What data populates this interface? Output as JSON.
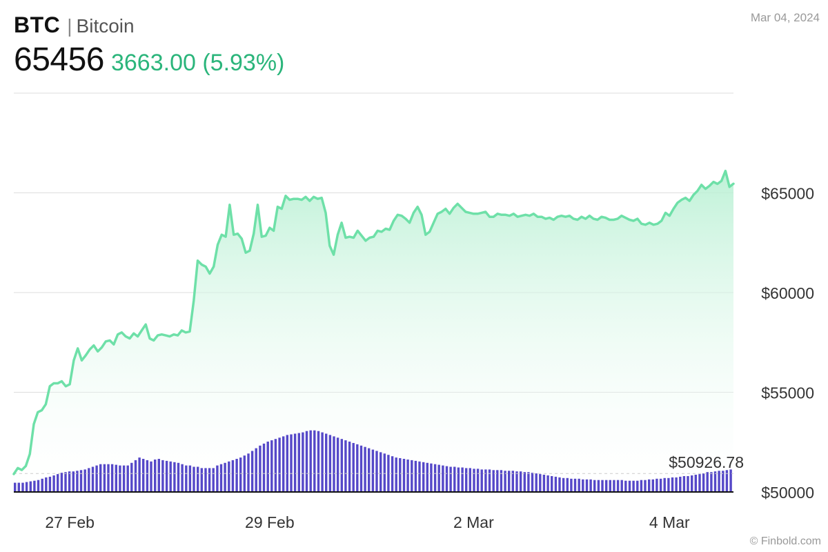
{
  "header": {
    "ticker": "BTC",
    "separator": "|",
    "name": "Bitcoin",
    "price": "65456",
    "change": "3663.00 (5.93%)",
    "date": "Mar 04, 2024"
  },
  "footer": {
    "credit": "© Finbold.com"
  },
  "colors": {
    "line": "#6ee0a8",
    "area_top": "#b8f0d3",
    "volume_bar": "#5548c8",
    "change_text": "#2bb57b",
    "grid": "#dddddd"
  },
  "chart_data": {
    "type": "line",
    "y_axis": {
      "ticks": [
        50000,
        55000,
        60000,
        65000
      ],
      "tick_labels": [
        "$50000",
        "$55000",
        "$60000",
        "$65000"
      ],
      "position": "right",
      "ylim": [
        50000,
        70000
      ]
    },
    "x_axis": {
      "tick_labels": [
        "27 Feb",
        "29 Feb",
        "2 Mar",
        "4 Mar"
      ],
      "tick_index": [
        14,
        64,
        115,
        164
      ]
    },
    "baseline_label": "$50926.78",
    "baseline_value": 50926.78,
    "price_series": {
      "name": "",
      "values": [
        50900,
        51200,
        51100,
        51300,
        51900,
        53400,
        54000,
        54100,
        54400,
        55300,
        55450,
        55450,
        55550,
        55300,
        55400,
        56600,
        57200,
        56600,
        56850,
        57150,
        57350,
        57050,
        57250,
        57550,
        57600,
        57400,
        57900,
        58000,
        57800,
        57700,
        57950,
        57800,
        58100,
        58400,
        57700,
        57600,
        57850,
        57900,
        57850,
        57800,
        57900,
        57850,
        58100,
        58000,
        58050,
        59600,
        61600,
        61400,
        61300,
        60950,
        61300,
        62400,
        62900,
        62800,
        64400,
        62900,
        62950,
        62700,
        62000,
        62100,
        62950,
        64400,
        62800,
        62850,
        63250,
        63100,
        64300,
        64200,
        64850,
        64650,
        64700,
        64700,
        64650,
        64800,
        64600,
        64800,
        64700,
        64750,
        64000,
        62350,
        61900,
        62900,
        63500,
        62750,
        62800,
        62750,
        63100,
        62850,
        62600,
        62750,
        62800,
        63100,
        63050,
        63200,
        63150,
        63600,
        63900,
        63850,
        63700,
        63500,
        64000,
        64300,
        63900,
        62900,
        63050,
        63500,
        63950,
        64050,
        64200,
        63950,
        64250,
        64450,
        64250,
        64050,
        64000,
        63950,
        63950,
        64000,
        64050,
        63800,
        63800,
        63950,
        63900,
        63900,
        63850,
        63950,
        63800,
        63850,
        63900,
        63850,
        63950,
        63800,
        63800,
        63700,
        63750,
        63650,
        63800,
        63850,
        63800,
        63850,
        63700,
        63650,
        63800,
        63700,
        63850,
        63700,
        63650,
        63800,
        63750,
        63650,
        63650,
        63700,
        63850,
        63750,
        63650,
        63600,
        63700,
        63450,
        63400,
        63500,
        63400,
        63450,
        63600,
        64000,
        63850,
        64200,
        64500,
        64650,
        64750,
        64600,
        64900,
        65100,
        65400,
        65200,
        65350,
        65550,
        65450,
        65600,
        66100,
        65300,
        65456
      ]
    },
    "volume_series": {
      "name": "",
      "relative_heights": [
        0.14,
        0.14,
        0.14,
        0.15,
        0.16,
        0.17,
        0.18,
        0.2,
        0.22,
        0.23,
        0.25,
        0.27,
        0.29,
        0.3,
        0.31,
        0.31,
        0.32,
        0.33,
        0.34,
        0.36,
        0.38,
        0.4,
        0.42,
        0.42,
        0.42,
        0.42,
        0.41,
        0.4,
        0.4,
        0.4,
        0.44,
        0.48,
        0.52,
        0.5,
        0.48,
        0.46,
        0.49,
        0.5,
        0.48,
        0.47,
        0.46,
        0.45,
        0.44,
        0.42,
        0.4,
        0.4,
        0.38,
        0.38,
        0.36,
        0.36,
        0.36,
        0.36,
        0.4,
        0.42,
        0.44,
        0.46,
        0.48,
        0.5,
        0.52,
        0.55,
        0.58,
        0.62,
        0.66,
        0.7,
        0.73,
        0.76,
        0.78,
        0.8,
        0.82,
        0.84,
        0.86,
        0.87,
        0.88,
        0.89,
        0.9,
        0.92,
        0.93,
        0.93,
        0.92,
        0.9,
        0.88,
        0.86,
        0.84,
        0.82,
        0.8,
        0.78,
        0.76,
        0.74,
        0.72,
        0.7,
        0.68,
        0.66,
        0.64,
        0.62,
        0.6,
        0.58,
        0.56,
        0.54,
        0.52,
        0.51,
        0.5,
        0.49,
        0.48,
        0.47,
        0.46,
        0.45,
        0.44,
        0.43,
        0.42,
        0.41,
        0.4,
        0.39,
        0.38,
        0.38,
        0.37,
        0.37,
        0.36,
        0.36,
        0.35,
        0.35,
        0.34,
        0.34,
        0.34,
        0.33,
        0.33,
        0.33,
        0.32,
        0.32,
        0.32,
        0.31,
        0.31,
        0.3,
        0.3,
        0.29,
        0.28,
        0.27,
        0.26,
        0.25,
        0.24,
        0.23,
        0.22,
        0.21,
        0.21,
        0.2,
        0.2,
        0.2,
        0.19,
        0.19,
        0.19,
        0.18,
        0.18,
        0.18,
        0.18,
        0.18,
        0.18,
        0.18,
        0.18,
        0.17,
        0.17,
        0.17,
        0.17,
        0.18,
        0.18,
        0.19,
        0.19,
        0.2,
        0.2,
        0.21,
        0.21,
        0.22,
        0.22,
        0.23,
        0.24,
        0.24,
        0.25,
        0.26,
        0.27,
        0.28,
        0.3,
        0.3,
        0.31,
        0.32,
        0.32,
        0.33,
        0.34
      ]
    }
  }
}
